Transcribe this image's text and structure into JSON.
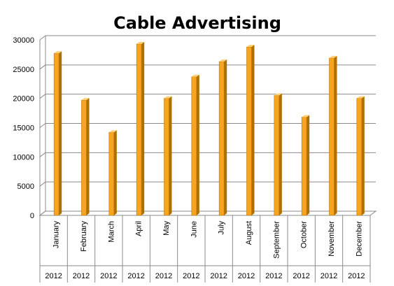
{
  "chart_data": {
    "type": "bar",
    "title": "Cable Advertising",
    "xlabel": "",
    "ylabel": "",
    "ylim": [
      0,
      30000
    ],
    "yticks": [
      0,
      5000,
      10000,
      15000,
      20000,
      25000,
      30000
    ],
    "grid": true,
    "legend": "none",
    "bar_color": "#f7a521",
    "categories": [
      "January",
      "February",
      "March",
      "April",
      "May",
      "June",
      "July",
      "August",
      "September",
      "October",
      "November",
      "December"
    ],
    "group_labels": [
      "2012",
      "2012",
      "2012",
      "2012",
      "2012",
      "2012",
      "2012",
      "2012",
      "2012",
      "2012",
      "2012",
      "2012"
    ],
    "values": [
      27700,
      19700,
      14200,
      29300,
      20000,
      23700,
      26300,
      28800,
      20500,
      16800,
      26900,
      20000
    ]
  }
}
